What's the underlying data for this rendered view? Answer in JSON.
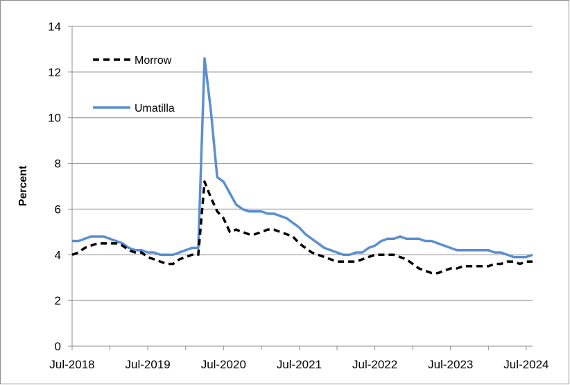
{
  "chart_data": {
    "type": "line",
    "ylabel": "Percent",
    "ylim": [
      0,
      14
    ],
    "y_ticks": [
      "0",
      "2",
      "4",
      "6",
      "8",
      "10",
      "12",
      "14"
    ],
    "x_tick_labels": [
      "Jul-2018",
      "Jul-2019",
      "Jul-2020",
      "Jul-2021",
      "Jul-2022",
      "Jul-2023",
      "Jul-2024"
    ],
    "x_start": "2018-07",
    "x_end": "2024-08",
    "grid": true,
    "legend_position": "top-left",
    "series": [
      {
        "name": "Morrow",
        "style": "dashed",
        "color": "#000000",
        "points": [
          [
            "2018-07",
            4.0
          ],
          [
            "2018-08",
            4.1
          ],
          [
            "2018-09",
            4.3
          ],
          [
            "2018-10",
            4.4
          ],
          [
            "2018-11",
            4.5
          ],
          [
            "2018-12",
            4.5
          ],
          [
            "2019-01",
            4.5
          ],
          [
            "2019-02",
            4.5
          ],
          [
            "2019-03",
            4.4
          ],
          [
            "2019-04",
            4.2
          ],
          [
            "2019-05",
            4.1
          ],
          [
            "2019-06",
            4.1
          ],
          [
            "2019-07",
            3.9
          ],
          [
            "2019-08",
            3.8
          ],
          [
            "2019-09",
            3.7
          ],
          [
            "2019-10",
            3.6
          ],
          [
            "2019-11",
            3.6
          ],
          [
            "2019-12",
            3.8
          ],
          [
            "2020-01",
            3.9
          ],
          [
            "2020-02",
            4.0
          ],
          [
            "2020-03",
            4.0
          ],
          [
            "2020-04",
            7.2
          ],
          [
            "2020-05",
            6.5
          ],
          [
            "2020-06",
            5.9
          ],
          [
            "2020-07",
            5.6
          ],
          [
            "2020-08",
            5.0
          ],
          [
            "2020-09",
            5.1
          ],
          [
            "2020-10",
            5.0
          ],
          [
            "2020-11",
            4.9
          ],
          [
            "2020-12",
            4.9
          ],
          [
            "2021-01",
            5.0
          ],
          [
            "2021-02",
            5.1
          ],
          [
            "2021-03",
            5.1
          ],
          [
            "2021-04",
            5.0
          ],
          [
            "2021-05",
            4.9
          ],
          [
            "2021-06",
            4.8
          ],
          [
            "2021-07",
            4.5
          ],
          [
            "2021-08",
            4.3
          ],
          [
            "2021-09",
            4.1
          ],
          [
            "2021-10",
            4.0
          ],
          [
            "2021-11",
            3.9
          ],
          [
            "2021-12",
            3.8
          ],
          [
            "2022-01",
            3.7
          ],
          [
            "2022-02",
            3.7
          ],
          [
            "2022-03",
            3.7
          ],
          [
            "2022-04",
            3.7
          ],
          [
            "2022-05",
            3.8
          ],
          [
            "2022-06",
            3.9
          ],
          [
            "2022-07",
            4.0
          ],
          [
            "2022-08",
            4.0
          ],
          [
            "2022-09",
            4.0
          ],
          [
            "2022-10",
            4.0
          ],
          [
            "2022-11",
            3.9
          ],
          [
            "2022-12",
            3.8
          ],
          [
            "2023-01",
            3.6
          ],
          [
            "2023-02",
            3.4
          ],
          [
            "2023-03",
            3.3
          ],
          [
            "2023-04",
            3.2
          ],
          [
            "2023-05",
            3.2
          ],
          [
            "2023-06",
            3.3
          ],
          [
            "2023-07",
            3.4
          ],
          [
            "2023-08",
            3.4
          ],
          [
            "2023-09",
            3.5
          ],
          [
            "2023-10",
            3.5
          ],
          [
            "2023-11",
            3.5
          ],
          [
            "2023-12",
            3.5
          ],
          [
            "2024-01",
            3.5
          ],
          [
            "2024-02",
            3.6
          ],
          [
            "2024-03",
            3.6
          ],
          [
            "2024-04",
            3.7
          ],
          [
            "2024-05",
            3.7
          ],
          [
            "2024-06",
            3.6
          ],
          [
            "2024-07",
            3.7
          ],
          [
            "2024-08",
            3.7
          ]
        ]
      },
      {
        "name": "Umatilla",
        "style": "solid",
        "color": "#5B8FD0",
        "points": [
          [
            "2018-07",
            4.6
          ],
          [
            "2018-08",
            4.6
          ],
          [
            "2018-09",
            4.7
          ],
          [
            "2018-10",
            4.8
          ],
          [
            "2018-11",
            4.8
          ],
          [
            "2018-12",
            4.8
          ],
          [
            "2019-01",
            4.7
          ],
          [
            "2019-02",
            4.6
          ],
          [
            "2019-03",
            4.5
          ],
          [
            "2019-04",
            4.3
          ],
          [
            "2019-05",
            4.2
          ],
          [
            "2019-06",
            4.2
          ],
          [
            "2019-07",
            4.1
          ],
          [
            "2019-08",
            4.1
          ],
          [
            "2019-09",
            4.0
          ],
          [
            "2019-10",
            4.0
          ],
          [
            "2019-11",
            4.0
          ],
          [
            "2019-12",
            4.1
          ],
          [
            "2020-01",
            4.2
          ],
          [
            "2020-02",
            4.3
          ],
          [
            "2020-03",
            4.3
          ],
          [
            "2020-04",
            12.6
          ],
          [
            "2020-05",
            10.3
          ],
          [
            "2020-06",
            7.4
          ],
          [
            "2020-07",
            7.2
          ],
          [
            "2020-08",
            6.7
          ],
          [
            "2020-09",
            6.2
          ],
          [
            "2020-10",
            6.0
          ],
          [
            "2020-11",
            5.9
          ],
          [
            "2020-12",
            5.9
          ],
          [
            "2021-01",
            5.9
          ],
          [
            "2021-02",
            5.8
          ],
          [
            "2021-03",
            5.8
          ],
          [
            "2021-04",
            5.7
          ],
          [
            "2021-05",
            5.6
          ],
          [
            "2021-06",
            5.4
          ],
          [
            "2021-07",
            5.2
          ],
          [
            "2021-08",
            4.9
          ],
          [
            "2021-09",
            4.7
          ],
          [
            "2021-10",
            4.5
          ],
          [
            "2021-11",
            4.3
          ],
          [
            "2021-12",
            4.2
          ],
          [
            "2022-01",
            4.1
          ],
          [
            "2022-02",
            4.0
          ],
          [
            "2022-03",
            4.0
          ],
          [
            "2022-04",
            4.1
          ],
          [
            "2022-05",
            4.1
          ],
          [
            "2022-06",
            4.3
          ],
          [
            "2022-07",
            4.4
          ],
          [
            "2022-08",
            4.6
          ],
          [
            "2022-09",
            4.7
          ],
          [
            "2022-10",
            4.7
          ],
          [
            "2022-11",
            4.8
          ],
          [
            "2022-12",
            4.7
          ],
          [
            "2023-01",
            4.7
          ],
          [
            "2023-02",
            4.7
          ],
          [
            "2023-03",
            4.6
          ],
          [
            "2023-04",
            4.6
          ],
          [
            "2023-05",
            4.5
          ],
          [
            "2023-06",
            4.4
          ],
          [
            "2023-07",
            4.3
          ],
          [
            "2023-08",
            4.2
          ],
          [
            "2023-09",
            4.2
          ],
          [
            "2023-10",
            4.2
          ],
          [
            "2023-11",
            4.2
          ],
          [
            "2023-12",
            4.2
          ],
          [
            "2024-01",
            4.2
          ],
          [
            "2024-02",
            4.1
          ],
          [
            "2024-03",
            4.1
          ],
          [
            "2024-04",
            4.0
          ],
          [
            "2024-05",
            3.9
          ],
          [
            "2024-06",
            3.9
          ],
          [
            "2024-07",
            3.9
          ],
          [
            "2024-08",
            4.0
          ]
        ]
      }
    ]
  }
}
